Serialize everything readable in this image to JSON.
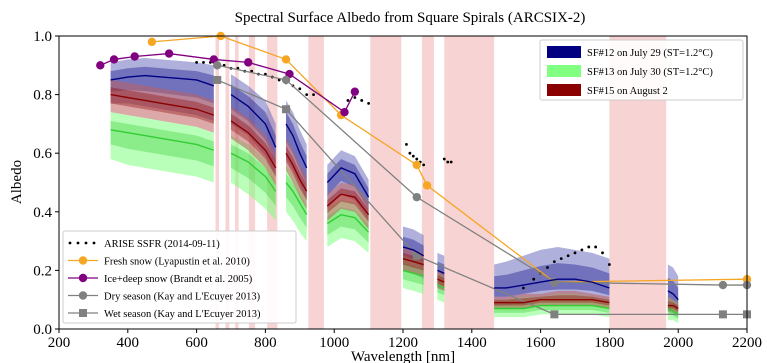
{
  "chart_data": {
    "type": "line",
    "title": "Spectral Surface Albedo from Square Spirals (ARCSIX-2)",
    "xlabel": "Wavelength [nm]",
    "ylabel": "Albedo",
    "xlim": [
      200,
      2200
    ],
    "ylim": [
      0.0,
      1.0
    ],
    "xticks": [
      200,
      400,
      600,
      800,
      1000,
      1200,
      1400,
      1600,
      1800,
      2000,
      2200
    ],
    "yticks": [
      0.0,
      0.2,
      0.4,
      0.6,
      0.8,
      1.0
    ],
    "grid": false,
    "legend_upper": "top-right",
    "legend_lower": "bottom-left",
    "shaded_bands": [
      [
        655,
        665
      ],
      [
        684,
        695
      ],
      [
        712,
        722
      ],
      [
        752,
        770
      ],
      [
        805,
        835
      ],
      [
        925,
        970
      ],
      [
        1105,
        1195
      ],
      [
        1255,
        1290
      ],
      [
        1320,
        1465
      ],
      [
        1800,
        1965
      ]
    ],
    "spiral_series": [
      {
        "name": "SF#12 on July 29 (ST=1.2°C)",
        "color": "#000080",
        "band_color": "#7070c0",
        "segments": [
          {
            "x": [
              350,
              400,
              450,
              500,
              550,
              600,
              650
            ],
            "mean": [
              0.85,
              0.86,
              0.865,
              0.86,
              0.855,
              0.85,
              0.83
            ],
            "lo": [
              0.77,
              0.77,
              0.76,
              0.75,
              0.74,
              0.73,
              0.71
            ],
            "hi": [
              0.91,
              0.92,
              0.925,
              0.92,
              0.915,
              0.91,
              0.9
            ]
          },
          {
            "x": [
              700,
              750,
              800,
              830
            ],
            "mean": [
              0.8,
              0.76,
              0.7,
              0.62
            ],
            "lo": [
              0.7,
              0.66,
              0.59,
              0.52
            ],
            "hi": [
              0.87,
              0.83,
              0.78,
              0.7
            ]
          },
          {
            "x": [
              860,
              880,
              900,
              920
            ],
            "mean": [
              0.7,
              0.66,
              0.6,
              0.55
            ],
            "lo": [
              0.58,
              0.54,
              0.49,
              0.44
            ],
            "hi": [
              0.78,
              0.74,
              0.68,
              0.63
            ]
          },
          {
            "x": [
              980,
              1020,
              1060,
              1100
            ],
            "mean": [
              0.5,
              0.55,
              0.53,
              0.45
            ],
            "lo": [
              0.41,
              0.46,
              0.44,
              0.37
            ],
            "hi": [
              0.56,
              0.61,
              0.59,
              0.51
            ]
          },
          {
            "x": [
              1200,
              1230,
              1260
            ],
            "mean": [
              0.28,
              0.27,
              0.25
            ],
            "lo": [
              0.2,
              0.19,
              0.17
            ],
            "hi": [
              0.35,
              0.34,
              0.32
            ]
          },
          {
            "x": [
              1300,
              1320
            ],
            "mean": [
              0.2,
              0.19
            ],
            "lo": [
              0.14,
              0.13
            ],
            "hi": [
              0.26,
              0.25
            ]
          },
          {
            "x": [
              1465,
              1500,
              1550,
              1600,
              1650,
              1700,
              1750,
              1800
            ],
            "mean": [
              0.14,
              0.14,
              0.15,
              0.16,
              0.17,
              0.17,
              0.16,
              0.14
            ],
            "lo": [
              0.08,
              0.08,
              0.09,
              0.1,
              0.1,
              0.1,
              0.1,
              0.09
            ],
            "hi": [
              0.22,
              0.23,
              0.25,
              0.27,
              0.28,
              0.27,
              0.26,
              0.24
            ]
          },
          {
            "x": [
              1970,
              1985,
              2000
            ],
            "mean": [
              0.13,
              0.12,
              0.1
            ],
            "lo": [
              0.06,
              0.05,
              0.04
            ],
            "hi": [
              0.22,
              0.21,
              0.18
            ]
          }
        ]
      },
      {
        "name": "SF#13 on July 30 (ST=1.2°C)",
        "color": "#33cc33",
        "band_color": "#80ff80",
        "segments": [
          {
            "x": [
              350,
              400,
              450,
              500,
              550,
              600,
              650
            ],
            "mean": [
              0.68,
              0.67,
              0.66,
              0.65,
              0.64,
              0.63,
              0.61
            ],
            "lo": [
              0.58,
              0.56,
              0.55,
              0.54,
              0.53,
              0.52,
              0.5
            ],
            "hi": [
              0.74,
              0.73,
              0.72,
              0.71,
              0.7,
              0.69,
              0.67
            ]
          },
          {
            "x": [
              700,
              750,
              800,
              830
            ],
            "mean": [
              0.6,
              0.57,
              0.52,
              0.47
            ],
            "lo": [
              0.5,
              0.46,
              0.41,
              0.37
            ],
            "hi": [
              0.66,
              0.63,
              0.58,
              0.53
            ]
          },
          {
            "x": [
              860,
              880,
              900,
              920
            ],
            "mean": [
              0.5,
              0.47,
              0.43,
              0.39
            ],
            "lo": [
              0.4,
              0.37,
              0.33,
              0.3
            ],
            "hi": [
              0.56,
              0.53,
              0.49,
              0.45
            ]
          },
          {
            "x": [
              980,
              1020,
              1060,
              1100
            ],
            "mean": [
              0.36,
              0.39,
              0.38,
              0.33
            ],
            "lo": [
              0.28,
              0.31,
              0.3,
              0.26
            ],
            "hi": [
              0.41,
              0.44,
              0.43,
              0.38
            ]
          },
          {
            "x": [
              1200,
              1230,
              1260
            ],
            "mean": [
              0.2,
              0.19,
              0.18
            ],
            "lo": [
              0.14,
              0.13,
              0.12
            ],
            "hi": [
              0.25,
              0.24,
              0.23
            ]
          },
          {
            "x": [
              1300,
              1320
            ],
            "mean": [
              0.15,
              0.14
            ],
            "lo": [
              0.1,
              0.09
            ],
            "hi": [
              0.19,
              0.18
            ]
          },
          {
            "x": [
              1465,
              1500,
              1550,
              1600,
              1650,
              1700,
              1750,
              1800
            ],
            "mean": [
              0.07,
              0.07,
              0.07,
              0.08,
              0.08,
              0.08,
              0.08,
              0.07
            ],
            "lo": [
              0.04,
              0.04,
              0.04,
              0.05,
              0.05,
              0.05,
              0.05,
              0.04
            ],
            "hi": [
              0.1,
              0.1,
              0.11,
              0.11,
              0.12,
              0.12,
              0.11,
              0.1
            ]
          },
          {
            "x": [
              1970,
              1985,
              2000
            ],
            "mean": [
              0.07,
              0.06,
              0.05
            ],
            "lo": [
              0.03,
              0.03,
              0.02
            ],
            "hi": [
              0.11,
              0.1,
              0.09
            ]
          }
        ]
      },
      {
        "name": "SF#15 on August 2",
        "color": "#8b0000",
        "band_color": "#c06060",
        "segments": [
          {
            "x": [
              350,
              400,
              450,
              500,
              550,
              600,
              650
            ],
            "mean": [
              0.8,
              0.79,
              0.78,
              0.77,
              0.76,
              0.75,
              0.73
            ],
            "lo": [
              0.74,
              0.73,
              0.72,
              0.71,
              0.7,
              0.69,
              0.67
            ],
            "hi": [
              0.85,
              0.84,
              0.83,
              0.82,
              0.81,
              0.8,
              0.78
            ]
          },
          {
            "x": [
              700,
              750,
              800,
              830
            ],
            "mean": [
              0.71,
              0.67,
              0.61,
              0.55
            ],
            "lo": [
              0.65,
              0.61,
              0.55,
              0.49
            ],
            "hi": [
              0.76,
              0.72,
              0.66,
              0.6
            ]
          },
          {
            "x": [
              860,
              880,
              900,
              920
            ],
            "mean": [
              0.6,
              0.56,
              0.51,
              0.47
            ],
            "lo": [
              0.54,
              0.5,
              0.45,
              0.41
            ],
            "hi": [
              0.65,
              0.61,
              0.56,
              0.52
            ]
          },
          {
            "x": [
              980,
              1020,
              1060,
              1100
            ],
            "mean": [
              0.42,
              0.46,
              0.45,
              0.39
            ],
            "lo": [
              0.37,
              0.41,
              0.4,
              0.34
            ],
            "hi": [
              0.46,
              0.5,
              0.49,
              0.43
            ]
          },
          {
            "x": [
              1200,
              1230,
              1260
            ],
            "mean": [
              0.24,
              0.23,
              0.22
            ],
            "lo": [
              0.2,
              0.19,
              0.18
            ],
            "hi": [
              0.28,
              0.27,
              0.26
            ]
          },
          {
            "x": [
              1300,
              1320
            ],
            "mean": [
              0.17,
              0.16
            ],
            "lo": [
              0.14,
              0.13
            ],
            "hi": [
              0.2,
              0.19
            ]
          },
          {
            "x": [
              1465,
              1500,
              1550,
              1600,
              1650,
              1700,
              1750,
              1800
            ],
            "mean": [
              0.09,
              0.09,
              0.09,
              0.1,
              0.1,
              0.1,
              0.1,
              0.09
            ],
            "lo": [
              0.07,
              0.07,
              0.07,
              0.08,
              0.08,
              0.08,
              0.08,
              0.07
            ],
            "hi": [
              0.11,
              0.11,
              0.12,
              0.12,
              0.13,
              0.13,
              0.12,
              0.11
            ]
          },
          {
            "x": [
              1970,
              1985,
              2000
            ],
            "mean": [
              0.08,
              0.08,
              0.07
            ],
            "lo": [
              0.06,
              0.06,
              0.05
            ],
            "hi": [
              0.11,
              0.1,
              0.09
            ]
          }
        ]
      }
    ],
    "reference_series": [
      {
        "name": "ARISE SSFR (2014-09-11)",
        "style": "dots",
        "color": "#000000",
        "x": [
          600,
          620,
          640,
          660,
          680,
          700,
          720,
          740,
          760,
          780,
          800,
          820,
          840,
          860,
          880,
          900,
          920,
          940,
          1040,
          1060,
          1080,
          1100,
          1210,
          1220,
          1230,
          1240,
          1250,
          1260,
          1320,
          1330,
          1340,
          1550,
          1580,
          1600,
          1620,
          1640,
          1660,
          1680,
          1700,
          1720,
          1740,
          1760,
          1780,
          1800
        ],
        "y": [
          0.91,
          0.91,
          0.91,
          0.9,
          0.9,
          0.89,
          0.89,
          0.88,
          0.88,
          0.87,
          0.87,
          0.86,
          0.85,
          0.84,
          0.83,
          0.82,
          0.8,
          0.8,
          0.78,
          0.79,
          0.78,
          0.77,
          0.63,
          0.6,
          0.59,
          0.58,
          0.57,
          0.56,
          0.58,
          0.57,
          0.57,
          0.14,
          0.17,
          0.19,
          0.21,
          0.23,
          0.24,
          0.25,
          0.26,
          0.27,
          0.28,
          0.28,
          0.26,
          0.22
        ]
      },
      {
        "name": "Fresh snow (Lyapustin et al. 2010)",
        "style": "line-marker",
        "color": "#f5a623",
        "marker": "circle",
        "x": [
          470,
          670,
          860,
          1020,
          1240,
          1270,
          1640,
          2200
        ],
        "y": [
          0.98,
          1.0,
          0.92,
          0.73,
          0.56,
          0.49,
          0.16,
          0.17
        ]
      },
      {
        "name": "Ice+deep snow (Brandt et al. 2005)",
        "style": "line-marker",
        "color": "#800080",
        "marker": "circle",
        "x": [
          320,
          360,
          420,
          520,
          650,
          750,
          870,
          1030,
          1060
        ],
        "y": [
          0.9,
          0.92,
          0.93,
          0.94,
          0.92,
          0.91,
          0.87,
          0.74,
          0.81
        ]
      },
      {
        "name": "Dry season (Kay and L'Ecuyer 2013)",
        "style": "line-marker",
        "color": "#808080",
        "marker": "circle",
        "x": [
          660,
          860,
          1240,
          1640,
          2130,
          2200
        ],
        "y": [
          0.9,
          0.85,
          0.45,
          0.16,
          0.15,
          0.15
        ]
      },
      {
        "name": "Wet season (Kay and L'Ecuyer 2013)",
        "style": "line-marker",
        "color": "#808080",
        "marker": "square",
        "x": [
          660,
          860,
          1240,
          1640,
          2130,
          2200
        ],
        "y": [
          0.85,
          0.75,
          0.25,
          0.05,
          0.05,
          0.05
        ]
      }
    ]
  }
}
